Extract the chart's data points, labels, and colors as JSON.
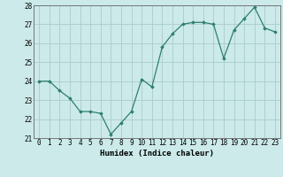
{
  "x": [
    0,
    1,
    2,
    3,
    4,
    5,
    6,
    7,
    8,
    9,
    10,
    11,
    12,
    13,
    14,
    15,
    16,
    17,
    18,
    19,
    20,
    21,
    22,
    23
  ],
  "y": [
    24.0,
    24.0,
    23.5,
    23.1,
    22.4,
    22.4,
    22.3,
    21.2,
    21.8,
    22.4,
    24.1,
    23.7,
    25.8,
    26.5,
    27.0,
    27.1,
    27.1,
    27.0,
    25.2,
    26.7,
    27.3,
    27.9,
    26.8,
    26.6
  ],
  "line_color": "#2d7f6e",
  "marker": "D",
  "marker_size": 1.8,
  "bg_color": "#cceaea",
  "grid_color": "#aacccc",
  "xlabel": "Humidex (Indice chaleur)",
  "ylim": [
    21,
    28
  ],
  "xlim": [
    -0.5,
    23.5
  ],
  "yticks": [
    21,
    22,
    23,
    24,
    25,
    26,
    27,
    28
  ],
  "xticks": [
    0,
    1,
    2,
    3,
    4,
    5,
    6,
    7,
    8,
    9,
    10,
    11,
    12,
    13,
    14,
    15,
    16,
    17,
    18,
    19,
    20,
    21,
    22,
    23
  ],
  "label_fontsize": 6.5,
  "tick_fontsize": 5.5
}
